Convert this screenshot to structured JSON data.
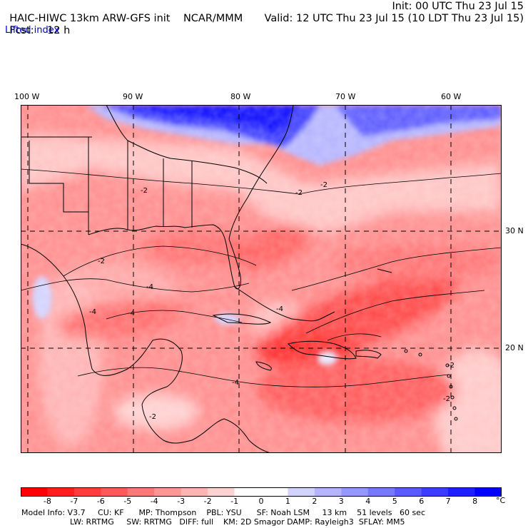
{
  "header": {
    "model": "HAIC-HIWC 13km ARW-GFS init",
    "org": "NCAR/MMM",
    "init": "Init: 00 UTC Thu 23 Jul 15",
    "fcst_label": "Fcst:",
    "fcst_value": "12 h",
    "valid": "Valid: 12 UTC Thu 23 Jul 15 (10 LDT Thu 23 Jul 15)",
    "field": "Lifted index"
  },
  "map": {
    "longitude_labels": [
      "100 W",
      "90 W",
      "80 W",
      "70 W",
      "60 W"
    ],
    "latitude_labels": [
      "30 N",
      "20 N"
    ],
    "contour_labels": [
      "-2",
      "-2",
      "-2",
      "-2",
      "-2",
      "-4",
      "-4",
      "-4",
      "-4",
      "-4",
      "-2",
      "-2"
    ]
  },
  "colorbar": {
    "ticks": [
      "-8",
      "-7",
      "-6",
      "-5",
      "-4",
      "-3",
      "-2",
      "-1",
      "0",
      "1",
      "2",
      "3",
      "4",
      "5",
      "6",
      "7",
      "8"
    ],
    "unit": "°C",
    "colors": [
      "#ff0000",
      "#ff1e1e",
      "#ff3c3c",
      "#ff5a5a",
      "#ff7878",
      "#ff9696",
      "#ffb4b4",
      "#ffd2d2",
      "#ffffff",
      "#d2d2ff",
      "#b4b4ff",
      "#9696ff",
      "#7878ff",
      "#5a5aff",
      "#3c3cff",
      "#1e1eff",
      "#0000ff"
    ]
  },
  "model_info": {
    "line1": "Model Info: V3.7     CU: KF      MP: Thompson    PBL: YSU      SF: Noah LSM     13 km    51 levels   60 sec",
    "line2": "LW: RRTMG     SW: RRTMG   DIFF: full    KM: 2D Smagor DAMP: Rayleigh3  SFLAY: MM5"
  }
}
